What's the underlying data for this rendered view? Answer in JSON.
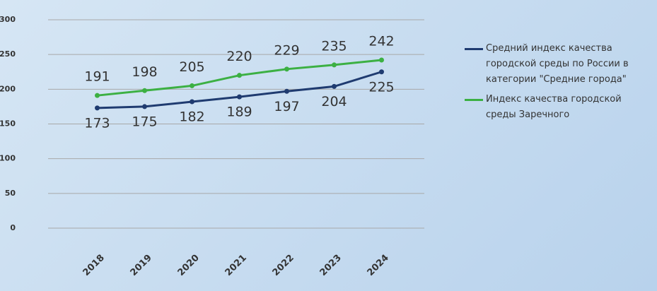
{
  "chart_data": {
    "type": "line",
    "categories": [
      "2018",
      "2019",
      "2020",
      "2021",
      "2022",
      "2023",
      "2024"
    ],
    "series": [
      {
        "name": "Средний индекс качества городской среды по России в категории \"Средние города\"",
        "color": "#1f3b70",
        "values": [
          173,
          175,
          182,
          189,
          197,
          204,
          225
        ]
      },
      {
        "name": "Индекс качества городской среды Заречного",
        "color": "#3cb043",
        "values": [
          191,
          198,
          205,
          220,
          229,
          235,
          242
        ]
      }
    ],
    "ylim": [
      0,
      300
    ],
    "yticks": [
      0,
      50,
      100,
      150,
      200,
      250,
      300
    ],
    "grid": true,
    "legend": "right"
  }
}
